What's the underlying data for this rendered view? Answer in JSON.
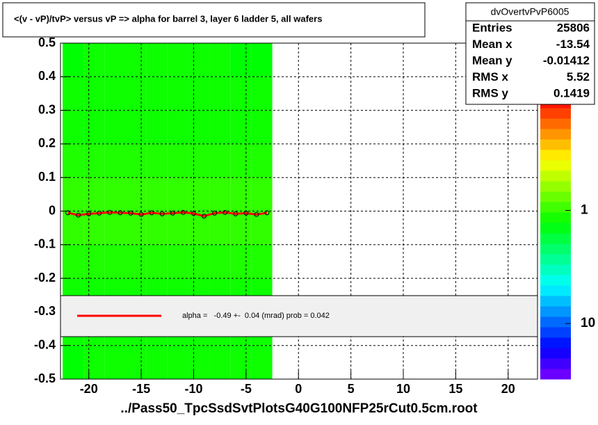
{
  "chart_data": {
    "type": "hist2d",
    "title": "<(v - vP)/tvP> versus   vP => alpha for barrel 3, layer 6 ladder 5, all wafers",
    "xlabel": "../Pass50_TpcSsdSvtPlotsG40G100NFP25rCut0.5cm.root",
    "xlim": [
      -22.7,
      22.8
    ],
    "ylim": [
      -0.5,
      0.5
    ],
    "xticks": [
      -20,
      -15,
      -10,
      -5,
      0,
      5,
      10,
      15,
      20
    ],
    "yticks": [
      -0.5,
      -0.4,
      -0.3,
      -0.2,
      -0.1,
      0,
      0.1,
      0.2,
      0.3,
      0.4,
      0.5
    ],
    "grid": true,
    "zlim": [
      31,
      0.1
    ],
    "zticks": [
      1,
      10
    ],
    "zlog": true,
    "xbins": [
      -22.5,
      -20.5,
      -18.5,
      -16.5,
      -14.5,
      -12.5,
      -10.5,
      -8.5,
      -6.5,
      -4.5,
      -2.5
    ],
    "ybins": [
      -0.5,
      -0.4,
      -0.3,
      -0.2,
      -0.1,
      0,
      0.1,
      0.2,
      0.3,
      0.4,
      0.5
    ],
    "z": [
      [
        1.3,
        1.2,
        1.2,
        1.2,
        1.2,
        1.2,
        1.2,
        1.2,
        1.2,
        1.2
      ],
      [
        1.2,
        1.2,
        1.2,
        1.2,
        1.2,
        1.2,
        1.2,
        1.2,
        1.2,
        1.2
      ],
      [
        1.2,
        1.2,
        1.2,
        1.2,
        1.2,
        1.2,
        1.2,
        1.2,
        1.2,
        1.2
      ],
      [
        1.1,
        1.1,
        1.1,
        1.1,
        1.1,
        1.1,
        1.1,
        1.1,
        1.1,
        1.1
      ],
      [
        1.0,
        1.0,
        1.0,
        1.0,
        1.0,
        1.0,
        1.0,
        1.0,
        1.0,
        1.0
      ],
      [
        1.0,
        1.0,
        1.0,
        1.0,
        1.0,
        1.0,
        1.0,
        1.0,
        1.0,
        1.0
      ],
      [
        1.1,
        1.1,
        1.1,
        1.1,
        1.1,
        1.1,
        1.1,
        1.1,
        1.1,
        1.1
      ],
      [
        1.2,
        1.2,
        1.2,
        1.2,
        1.2,
        1.2,
        1.2,
        1.2,
        1.2,
        1.2
      ],
      [
        1.2,
        1.2,
        1.2,
        1.2,
        1.2,
        1.2,
        1.2,
        1.2,
        1.2,
        1.2
      ],
      [
        1.3,
        1.2,
        1.2,
        1.2,
        1.2,
        1.2,
        1.2,
        1.2,
        1.3,
        1.3
      ]
    ],
    "series": [
      {
        "color": "#ff0000",
        "x": [
          -22,
          -21,
          -20,
          -19,
          -18,
          -17,
          -16,
          -15,
          -14,
          -13,
          -12,
          -11,
          -10,
          -9,
          -8,
          -7,
          -6,
          -5,
          -4,
          -3
        ],
        "values": [
          -0.005,
          -0.012,
          -0.008,
          -0.006,
          -0.004,
          -0.005,
          -0.006,
          -0.01,
          -0.005,
          -0.008,
          -0.006,
          -0.004,
          -0.007,
          -0.015,
          -0.006,
          -0.004,
          -0.008,
          -0.006,
          -0.01,
          -0.005
        ]
      }
    ],
    "stats": {
      "name": "dvOvertvPvP6005",
      "rows": [
        {
          "label": "Entries",
          "value": 25806
        },
        {
          "label": "Mean x",
          "value": -13.54
        },
        {
          "label": "Mean y",
          "value": -0.01412
        },
        {
          "label": "RMS x",
          "value": 5.52
        },
        {
          "label": "RMS y",
          "value": 0.1419
        }
      ]
    },
    "legend": "alpha =   -0.49 +-  0.04 (mrad) prob = 0.042"
  }
}
